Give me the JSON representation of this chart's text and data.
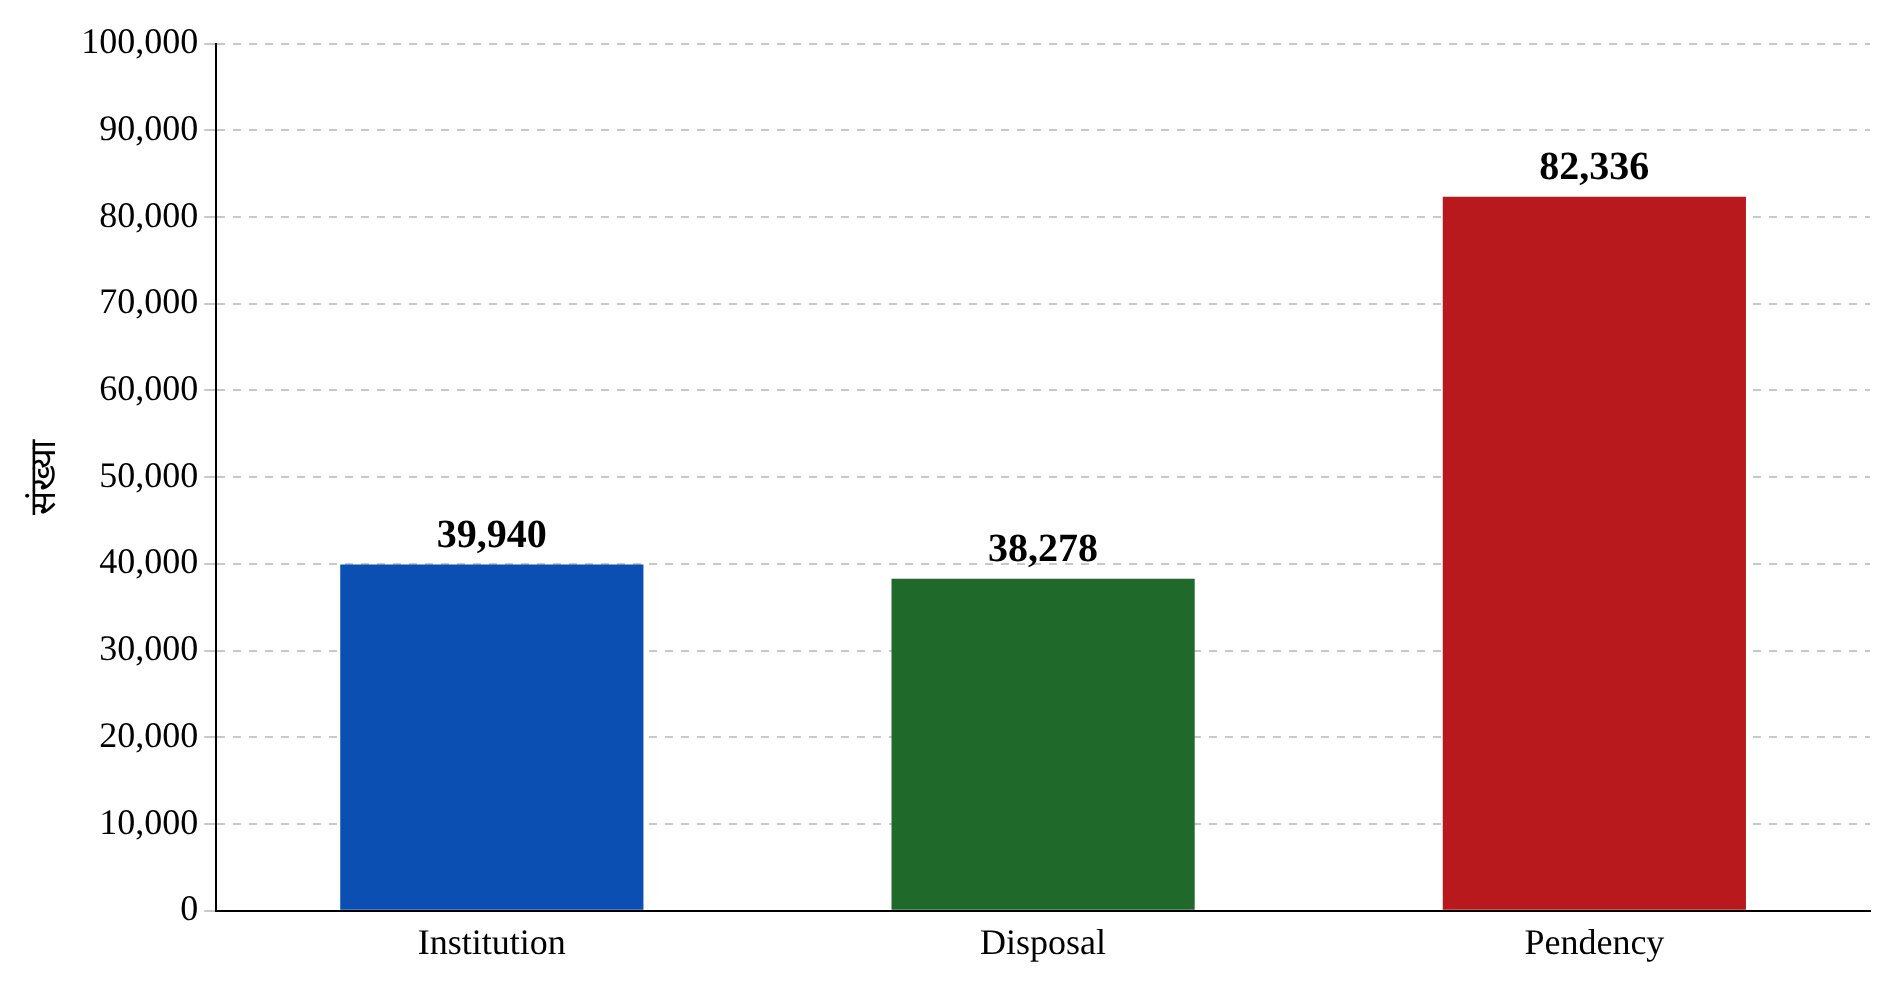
{
  "chart_data": {
    "type": "bar",
    "ylabel": "संख्या",
    "categories": [
      "Institution",
      "Disposal",
      "Pendency"
    ],
    "values": [
      39940,
      38278,
      82336
    ],
    "colors": [
      "#0b4fb3",
      "#1f6a2a",
      "#b8191d"
    ],
    "value_labels": [
      "39,940",
      "38,278",
      "82,336"
    ],
    "ylim": [
      0,
      100000
    ],
    "yticks": [
      {
        "value": 0,
        "label": "0"
      },
      {
        "value": 10000,
        "label": "10,000"
      },
      {
        "value": 20000,
        "label": "20,000"
      },
      {
        "value": 30000,
        "label": "30,000"
      },
      {
        "value": 40000,
        "label": "40,000"
      },
      {
        "value": 50000,
        "label": "50,000"
      },
      {
        "value": 60000,
        "label": "60,000"
      },
      {
        "value": 70000,
        "label": "70,000"
      },
      {
        "value": 80000,
        "label": "80,000"
      },
      {
        "value": 90000,
        "label": "90,000"
      },
      {
        "value": 100000,
        "label": "100,000"
      }
    ],
    "grid": "y",
    "legend": false
  }
}
